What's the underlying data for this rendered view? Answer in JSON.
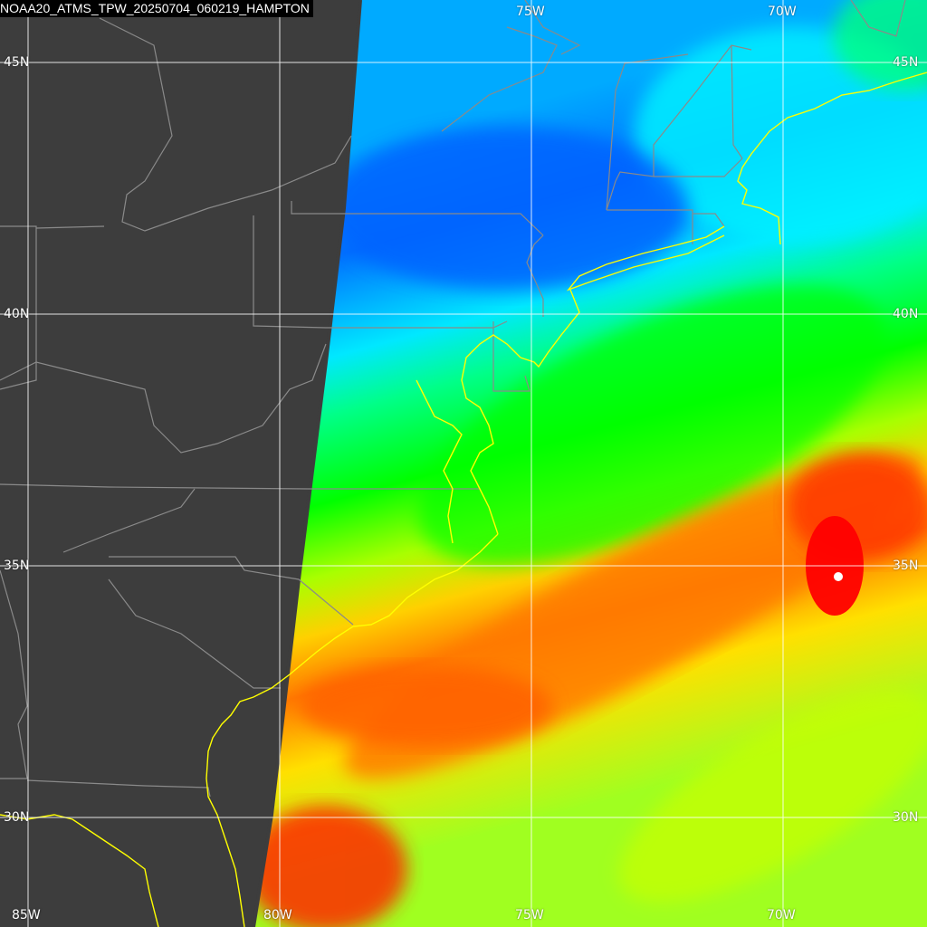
{
  "title": "NOAA20_ATMS_TPW_20250704_060219_HAMPTON",
  "grid": {
    "latitudes": [
      "45N",
      "40N",
      "35N",
      "30N"
    ],
    "longitudes_top": [
      "75W",
      "70W"
    ],
    "longitudes_bottom": [
      "85W",
      "80W",
      "75W",
      "70W"
    ]
  },
  "colors": {
    "background": "#3d3d3d",
    "gridline": "#ffffff",
    "state_borders": "#8a8a8a",
    "coastline": "#ffff00",
    "tpw_scale": [
      "#0060ff",
      "#0096ff",
      "#00e0ff",
      "#00ff90",
      "#00ff00",
      "#a0ff00",
      "#ffff00",
      "#ffb000",
      "#ff6000",
      "#ff0000"
    ]
  }
}
